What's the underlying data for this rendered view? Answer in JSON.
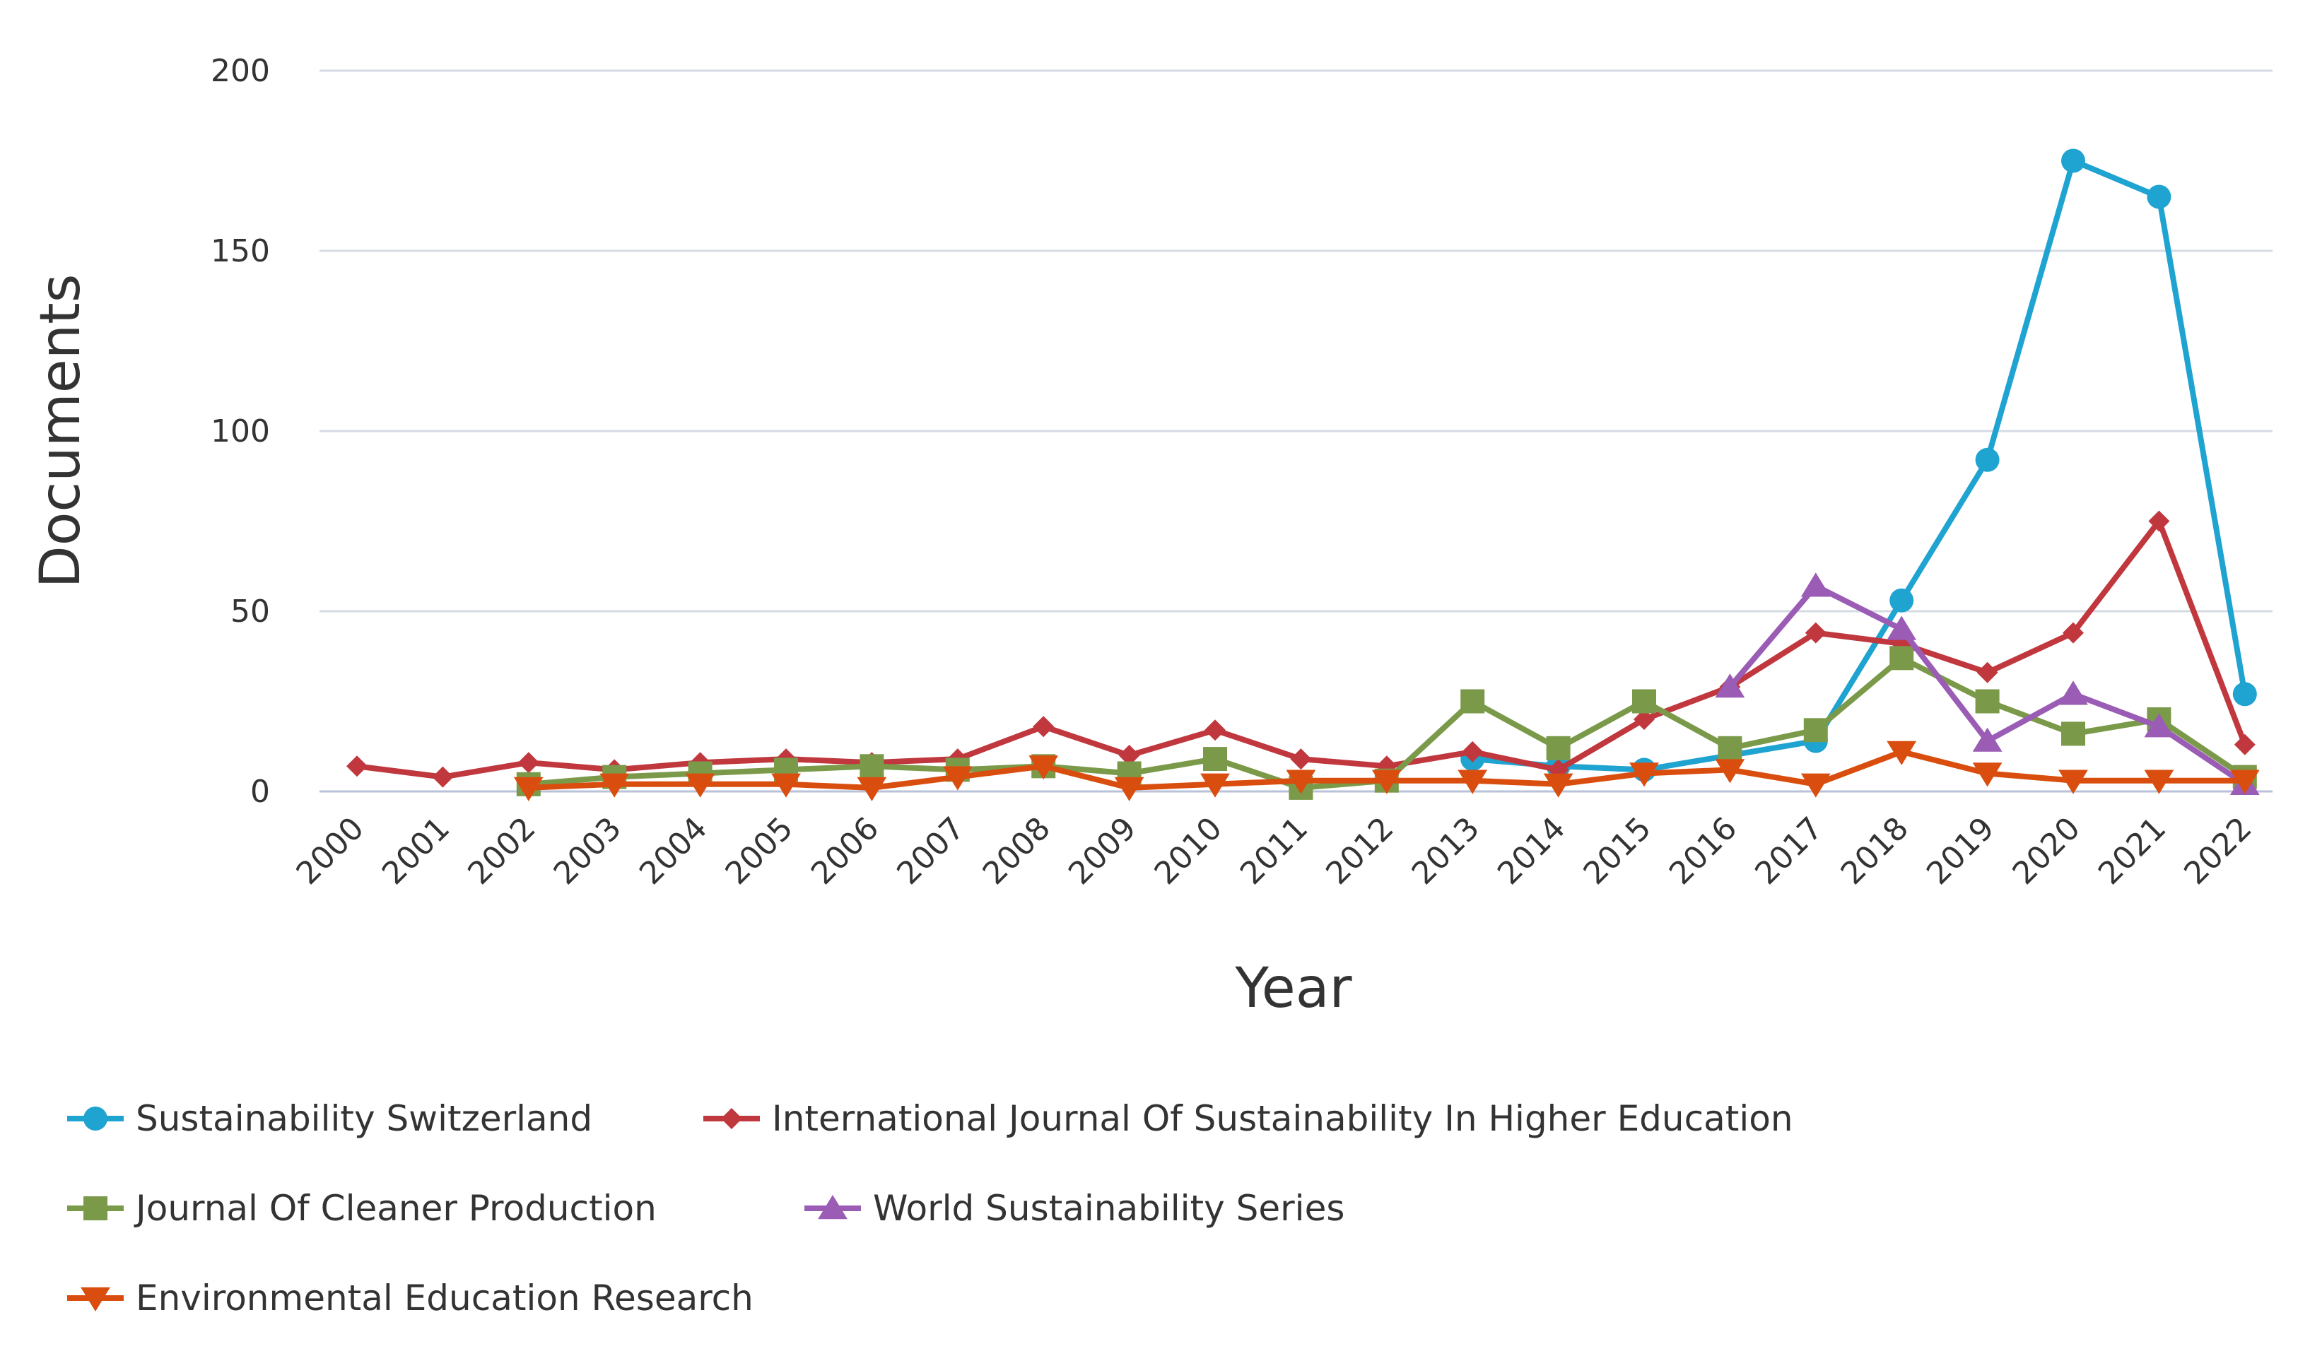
{
  "chart_data": {
    "type": "line",
    "title": "",
    "xlabel": "Year",
    "ylabel": "Documents",
    "ylim": [
      0,
      200
    ],
    "yticks": [
      0,
      50,
      100,
      150,
      200
    ],
    "grid": true,
    "legend_position": "bottom",
    "categories": [
      "2000",
      "2001",
      "2002",
      "2003",
      "2004",
      "2005",
      "2006",
      "2007",
      "2008",
      "2009",
      "2010",
      "2011",
      "2012",
      "2013",
      "2014",
      "2015",
      "2016",
      "2017",
      "2018",
      "2019",
      "2020",
      "2021",
      "2022"
    ],
    "series": [
      {
        "name": "Sustainability Switzerland",
        "color": "#1fa3d1",
        "marker": "circle",
        "values": [
          null,
          null,
          null,
          null,
          null,
          null,
          null,
          null,
          null,
          null,
          null,
          null,
          null,
          9,
          7,
          6,
          10,
          14,
          53,
          92,
          175,
          165,
          27
        ]
      },
      {
        "name": "International Journal Of Sustainability In Higher Education",
        "color": "#c0383e",
        "marker": "diamond",
        "values": [
          7,
          4,
          8,
          6,
          8,
          9,
          8,
          9,
          18,
          10,
          17,
          9,
          7,
          11,
          6,
          20,
          29,
          44,
          41,
          33,
          44,
          75,
          13
        ]
      },
      {
        "name": "Journal Of Cleaner Production",
        "color": "#7a9a4a",
        "marker": "square",
        "values": [
          null,
          null,
          2,
          4,
          5,
          6,
          7,
          6,
          7,
          5,
          9,
          1,
          3,
          25,
          12,
          25,
          12,
          17,
          37,
          25,
          16,
          20,
          4
        ]
      },
      {
        "name": "World Sustainability Series",
        "color": "#9a5cb4",
        "marker": "triangle-up",
        "values": [
          null,
          null,
          null,
          null,
          null,
          null,
          null,
          null,
          null,
          null,
          null,
          null,
          null,
          null,
          null,
          null,
          29,
          57,
          45,
          14,
          27,
          18,
          2
        ]
      },
      {
        "name": "Environmental Education Research",
        "color": "#d94e0f",
        "marker": "triangle-down",
        "values": [
          null,
          null,
          1,
          2,
          2,
          2,
          1,
          4,
          7,
          1,
          2,
          3,
          3,
          3,
          2,
          5,
          6,
          2,
          11,
          5,
          3,
          3,
          3
        ]
      }
    ]
  }
}
